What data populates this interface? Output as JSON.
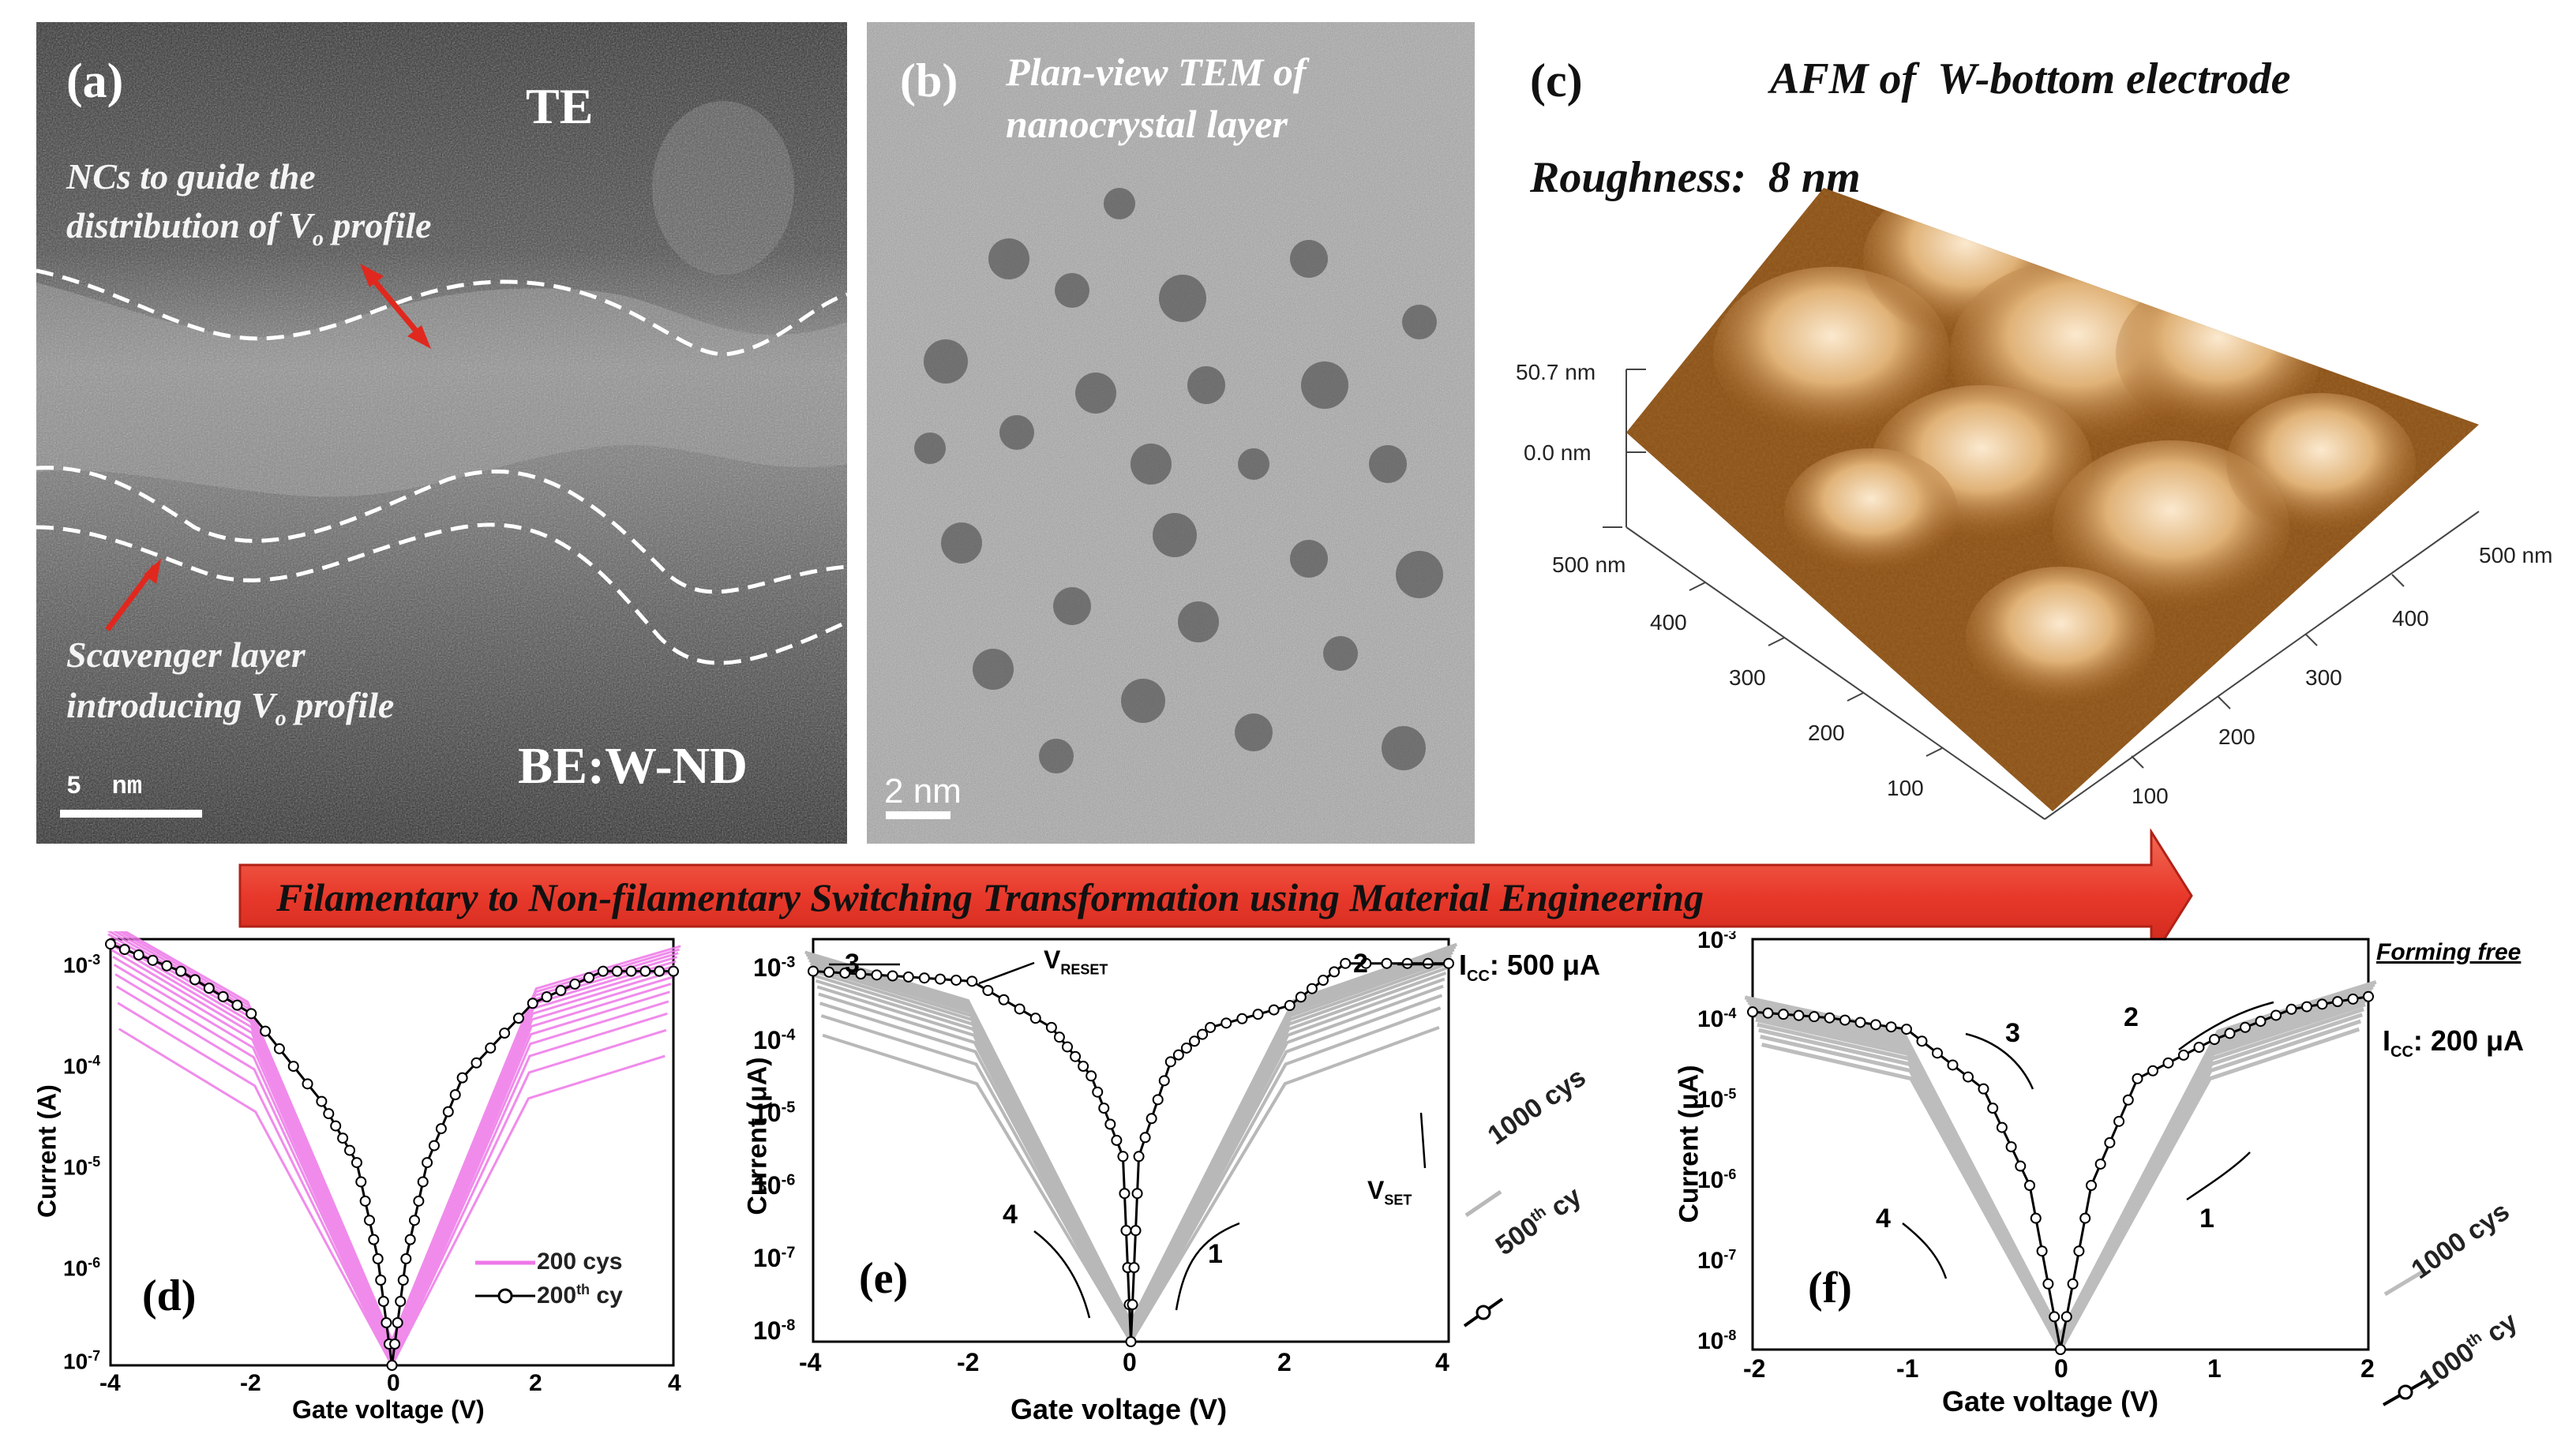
{
  "panel_a": {
    "label": "(a)",
    "te": "TE",
    "nc_line1": "NCs to guide the",
    "nc_line2_pre": "distribution of V",
    "nc_line2_sub": "o",
    "nc_line2_post": " profile",
    "sc_line1": "Scavenger layer",
    "sc_line2_pre": "introducing V",
    "sc_line2_sub": "o",
    "sc_line2_post": " profile",
    "be": "BE:W-ND",
    "scale": "5  nm"
  },
  "panel_b": {
    "label": "(b)",
    "title1": "Plan-view TEM of",
    "title2": "nanocrystal layer",
    "scale": "2 nm"
  },
  "panel_c": {
    "label": "(c)",
    "title": "AFM of  W-bottom electrode",
    "roughness": "Roughness:  8 nm",
    "z_top": "50.7 nm",
    "z_zero": "0.0 nm",
    "left_axis": [
      "500 nm",
      "400",
      "300",
      "200",
      "100"
    ],
    "right_axis": [
      "500 nm",
      "400",
      "300",
      "200",
      "100"
    ]
  },
  "banner": {
    "text": "Filamentary to Non-filamentary Switching Transformation using Material Engineering",
    "color": "#e8392b"
  },
  "panel_d": {
    "label": "(d)",
    "xlabel": "Gate voltage (V)",
    "ylabel": "Current (A)",
    "xticks": [
      "-4",
      "-2",
      "0",
      "2",
      "4"
    ],
    "yticks": [
      {
        "base": "10",
        "exp": "-3"
      },
      {
        "base": "10",
        "exp": "-4"
      },
      {
        "base": "10",
        "exp": "-5"
      },
      {
        "base": "10",
        "exp": "-6"
      },
      {
        "base": "10",
        "exp": "-7"
      }
    ],
    "legend": [
      {
        "text": "200 cys",
        "color": "#ee77e8"
      },
      {
        "text_pre": "200",
        "text_sup": "th",
        "text_post": " cy",
        "color": "#000000"
      }
    ]
  },
  "panel_e": {
    "label": "(e)",
    "xlabel": "Gate voltage (V)",
    "ylabel": "Current (μA)",
    "xticks": [
      "-4",
      "-2",
      "0",
      "2",
      "4"
    ],
    "yticks": [
      {
        "base": "10",
        "exp": "-3"
      },
      {
        "base": "10",
        "exp": "-4"
      },
      {
        "base": "10",
        "exp": "-5"
      },
      {
        "base": "10",
        "exp": "-6"
      },
      {
        "base": "10",
        "exp": "-7"
      },
      {
        "base": "10",
        "exp": "-8"
      }
    ],
    "icc_pre": "I",
    "icc_sub": "CC",
    "icc_post": ": 500 μA",
    "vreset_pre": "V",
    "vreset_sub": "RESET",
    "vset_pre": "V",
    "vset_sub": "SET",
    "n1": "1",
    "n2": "2",
    "n3": "3",
    "n4": "4",
    "legend1": "1000 cys",
    "legend2_pre": "500",
    "legend2_sup": "th",
    "legend2_post": " cy"
  },
  "panel_f": {
    "label": "(f)",
    "xlabel": "Gate voltage (V)",
    "ylabel": "Current (μA)",
    "xticks": [
      "-2",
      "-1",
      "0",
      "1",
      "2"
    ],
    "yticks": [
      {
        "base": "10",
        "exp": "-3"
      },
      {
        "base": "10",
        "exp": "-4"
      },
      {
        "base": "10",
        "exp": "-5"
      },
      {
        "base": "10",
        "exp": "-6"
      },
      {
        "base": "10",
        "exp": "-7"
      },
      {
        "base": "10",
        "exp": "-8"
      }
    ],
    "forming": "Forming free",
    "icc_pre": "I",
    "icc_sub": "CC",
    "icc_post": ": 200 μA",
    "n1": "1",
    "n2": "2",
    "n3": "3",
    "n4": "4",
    "legend1": "1000 cys",
    "legend2_pre": "1000",
    "legend2_sup": "th",
    "legend2_post": " cy"
  },
  "chart_data": [
    {
      "type": "line",
      "panel": "d",
      "xlabel": "Gate voltage (V)",
      "ylabel": "Current (A)",
      "xlim": [
        -4,
        4
      ],
      "ylim": [
        1e-07,
        0.001
      ],
      "yscale": "log",
      "series": [
        {
          "name": "200th cy",
          "x": [
            -4,
            -3,
            -2,
            -1,
            -0.5,
            -0.2,
            0,
            0.2,
            0.5,
            1,
            2,
            3,
            4
          ],
          "y": [
            0.0009,
            0.0005,
            0.0002,
            3e-05,
            8e-06,
            1e-06,
            1e-07,
            1e-06,
            8e-06,
            5e-05,
            0.00025,
            0.0005,
            0.0005
          ]
        },
        {
          "name": "200 cys",
          "x": [
            -4,
            -2,
            0,
            2,
            4
          ],
          "y": [
            0.0009,
            0.00015,
            1e-07,
            0.0002,
            0.0005
          ]
        }
      ]
    },
    {
      "type": "line",
      "panel": "e",
      "xlabel": "Gate voltage (V)",
      "ylabel": "Current (μA)",
      "xlim": [
        -4,
        4
      ],
      "ylim": [
        1e-08,
        0.001
      ],
      "yscale": "log",
      "series": [
        {
          "name": "500th cy",
          "x": [
            -4,
            -3,
            -2,
            -1,
            -0.5,
            -0.1,
            0,
            0.1,
            0.5,
            1,
            2,
            2.7,
            4
          ],
          "y": [
            0.0004,
            0.00035,
            0.0003,
            8e-05,
            2e-05,
            2e-06,
            1e-08,
            2e-06,
            3e-05,
            8e-05,
            0.00015,
            0.0005,
            0.0005
          ]
        },
        {
          "name": "1000 cys",
          "x": [
            -4,
            -2,
            0,
            2,
            4
          ],
          "y": [
            0.0004,
            0.0001,
            1e-08,
            0.0001,
            0.0005
          ]
        }
      ]
    },
    {
      "type": "line",
      "panel": "f",
      "xlabel": "Gate voltage (V)",
      "ylabel": "Current (μA)",
      "xlim": [
        -2,
        2
      ],
      "ylim": [
        1e-08,
        0.001
      ],
      "yscale": "log",
      "series": [
        {
          "name": "1000th cy",
          "x": [
            -2,
            -1.5,
            -1,
            -0.5,
            -0.2,
            0,
            0.2,
            0.5,
            1,
            1.5,
            2
          ],
          "y": [
            0.00013,
            0.00011,
            8e-05,
            1.5e-05,
            1e-06,
            1e-08,
            1e-06,
            2e-05,
            6e-05,
            0.00014,
            0.0002
          ]
        },
        {
          "name": "1000 cys",
          "x": [
            -2,
            -1,
            0,
            1,
            2
          ],
          "y": [
            0.00013,
            5e-05,
            1e-08,
            5e-05,
            0.0002
          ]
        }
      ]
    }
  ]
}
